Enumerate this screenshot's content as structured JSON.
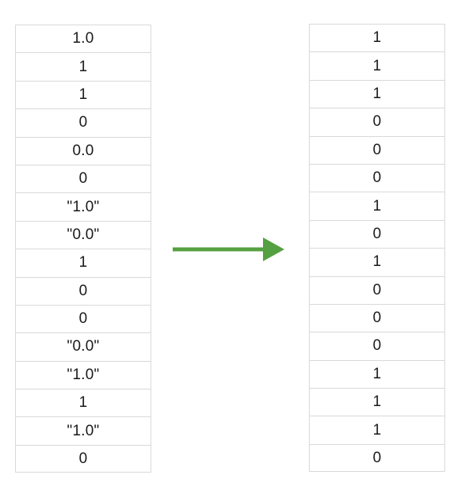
{
  "colors": {
    "arrow": "#55A041",
    "grid_line": "#d9d9d9",
    "text": "#1a1a1a"
  },
  "arrow": {
    "icon": "right-arrow-icon"
  },
  "input_column": {
    "cells": [
      "1.0",
      "1",
      "1",
      "0",
      "0.0",
      "0",
      "\"1.0\"",
      "\"0.0\"",
      "1",
      "0",
      "0",
      "\"0.0\"",
      "\"1.0\"",
      "1",
      "\"1.0\"",
      "0"
    ]
  },
  "output_column": {
    "cells": [
      "1",
      "1",
      "1",
      "0",
      "0",
      "0",
      "1",
      "0",
      "1",
      "0",
      "0",
      "0",
      "1",
      "1",
      "1",
      "0"
    ]
  }
}
